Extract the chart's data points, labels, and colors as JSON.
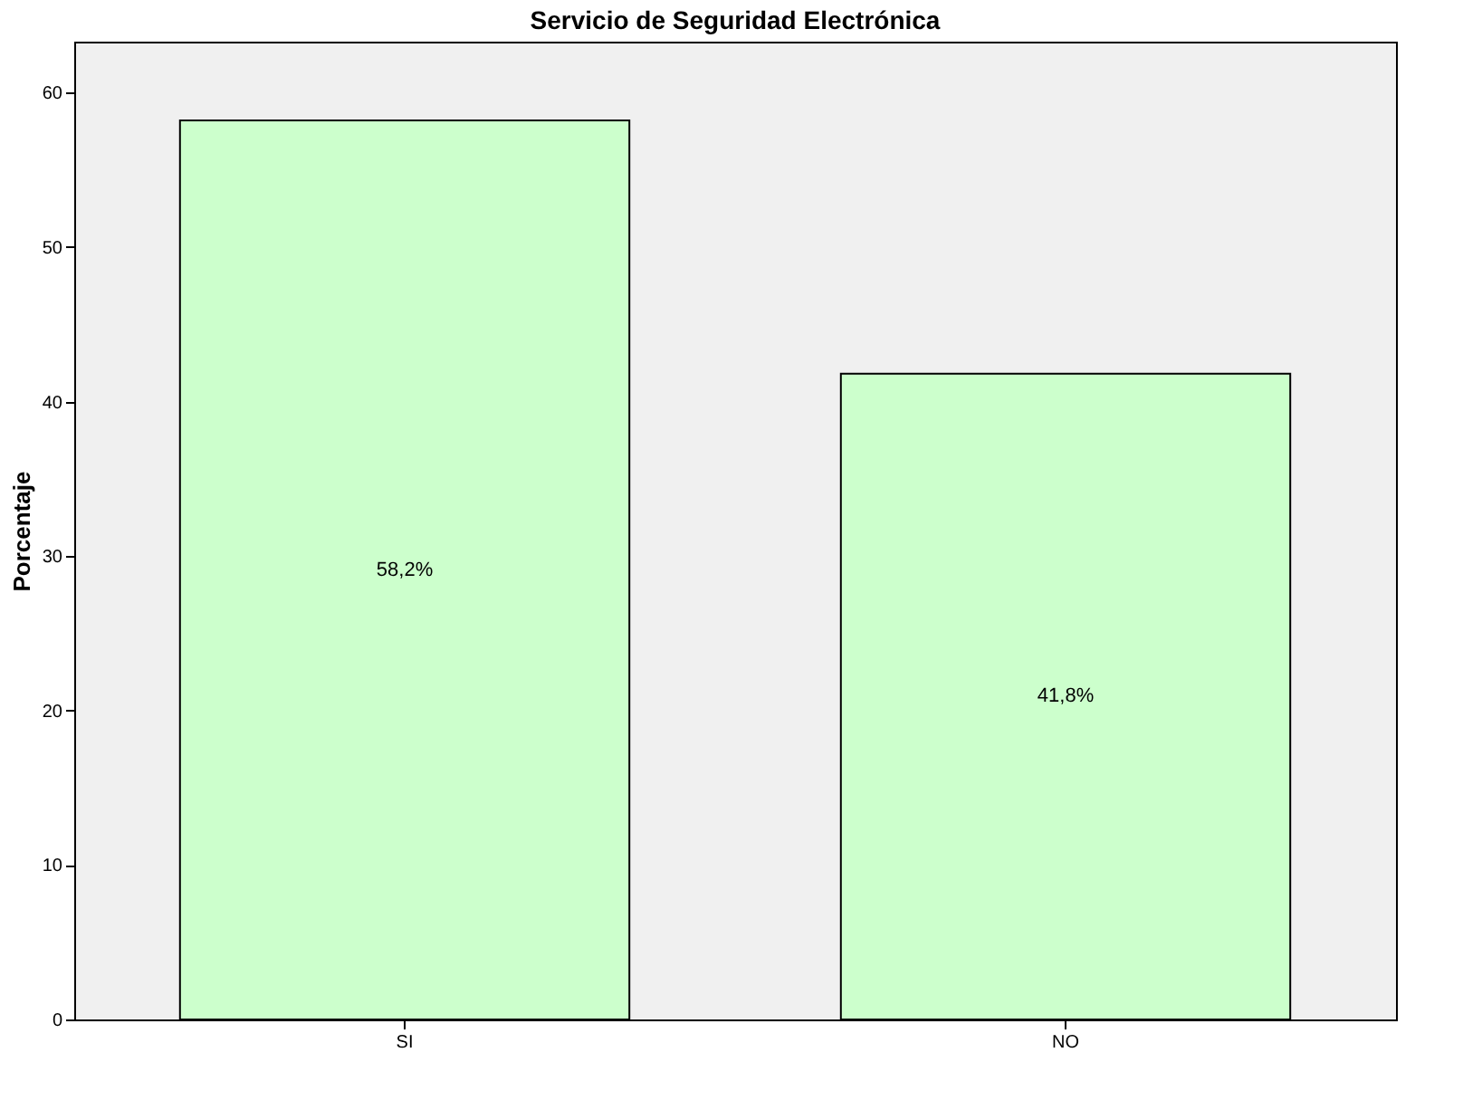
{
  "chart_data": {
    "type": "bar",
    "title": "Servicio de Seguridad Electrónica",
    "ylabel": "Porcentaje",
    "categories": [
      "SI",
      "NO"
    ],
    "values": [
      58.2,
      41.8
    ],
    "value_labels": [
      "58,2%",
      "41,8%"
    ],
    "color": "#ccffcc",
    "ylim": [
      0,
      63.3
    ],
    "yticks": [
      0,
      10,
      20,
      30,
      40,
      50,
      60
    ],
    "grid": false
  }
}
